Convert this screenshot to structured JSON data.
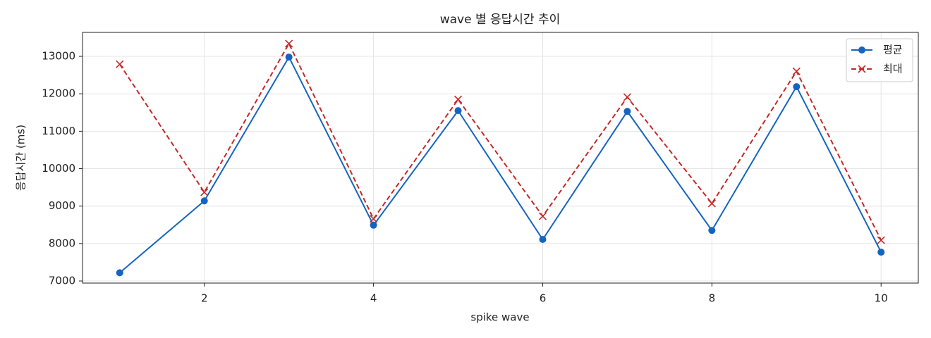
{
  "chart_data": {
    "type": "line",
    "title": "wave 별 응답시간 추이",
    "x_label": "spike wave",
    "y_label": "응답시간 (ms)",
    "x": [
      1,
      2,
      3,
      4,
      5,
      6,
      7,
      8,
      9,
      10
    ],
    "series": [
      {
        "name": "평균",
        "color": "#1565c0",
        "marker": "o",
        "linestyle": "solid",
        "values": [
          7220,
          9140,
          12980,
          8490,
          11550,
          8110,
          11530,
          8350,
          12190,
          7770
        ]
      },
      {
        "name": "최대",
        "color": "#c62828",
        "marker": "x",
        "linestyle": "dashed",
        "values": [
          12790,
          9370,
          13340,
          8660,
          11850,
          8730,
          11910,
          9070,
          12600,
          8090
        ]
      }
    ],
    "xlim": [
      0.56,
      10.44
    ],
    "ylim": [
      6944,
      13640
    ],
    "xticks": [
      2,
      4,
      6,
      8,
      10
    ],
    "yticks": [
      7000,
      8000,
      9000,
      10000,
      11000,
      12000,
      13000
    ],
    "grid": true,
    "legend": "upper right"
  }
}
